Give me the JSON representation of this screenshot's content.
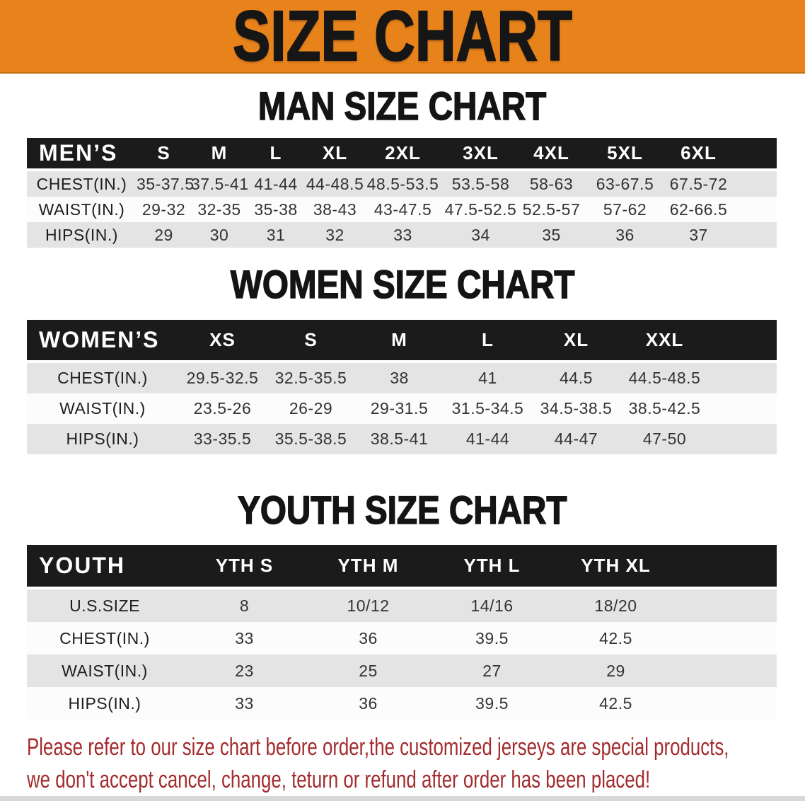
{
  "banner": {
    "title": "SIZE CHART"
  },
  "sections": [
    {
      "id": "men",
      "heading": "MAN SIZE CHART",
      "table": {
        "label": "MEN’S",
        "columns": [
          "S",
          "M",
          "L",
          "XL",
          "2XL",
          "3XL",
          "4XL",
          "5XL",
          "6XL"
        ],
        "rows": [
          {
            "label": "CHEST(IN.)",
            "values": [
              "35-37.5",
              "37.5-41",
              "41-44",
              "44-48.5",
              "48.5-53.5",
              "53.5-58",
              "58-63",
              "63-67.5",
              "67.5-72"
            ]
          },
          {
            "label": "WAIST(IN.)",
            "values": [
              "29-32",
              "32-35",
              "35-38",
              "38-43",
              "43-47.5",
              "47.5-52.5",
              "52.5-57",
              "57-62",
              "62-66.5"
            ]
          },
          {
            "label": "HIPS(IN.)",
            "values": [
              "29",
              "30",
              "31",
              "32",
              "33",
              "34",
              "35",
              "36",
              "37"
            ]
          }
        ]
      }
    },
    {
      "id": "women",
      "heading": "WOMEN SIZE CHART",
      "table": {
        "label": "WOMEN’S",
        "columns": [
          "XS",
          "S",
          "M",
          "L",
          "XL",
          "XXL"
        ],
        "rows": [
          {
            "label": "CHEST(IN.)",
            "values": [
              "29.5-32.5",
              "32.5-35.5",
              "38",
              "41",
              "44.5",
              "44.5-48.5"
            ]
          },
          {
            "label": "WAIST(IN.)",
            "values": [
              "23.5-26",
              "26-29",
              "29-31.5",
              "31.5-34.5",
              "34.5-38.5",
              "38.5-42.5"
            ]
          },
          {
            "label": "HIPS(IN.)",
            "values": [
              "33-35.5",
              "35.5-38.5",
              "38.5-41",
              "41-44",
              "44-47",
              "47-50"
            ]
          }
        ]
      }
    },
    {
      "id": "youth",
      "heading": "YOUTH SIZE CHART",
      "table": {
        "label": "YOUTH",
        "columns": [
          "YTH S",
          "YTH M",
          "YTH L",
          "YTH XL"
        ],
        "rows": [
          {
            "label": "U.S.SIZE",
            "values": [
              "8",
              "10/12",
              "14/16",
              "18/20"
            ]
          },
          {
            "label": "CHEST(IN.)",
            "values": [
              "33",
              "36",
              "39.5",
              "42.5"
            ]
          },
          {
            "label": "WAIST(IN.)",
            "values": [
              "23",
              "25",
              "27",
              "29"
            ]
          },
          {
            "label": "HIPS(IN.)",
            "values": [
              "33",
              "36",
              "39.5",
              "42.5"
            ]
          }
        ]
      }
    }
  ],
  "disclaimer": {
    "line1": "Please refer to our size chart before order,the customized jerseys are special products,",
    "line2": "we don't accept cancel, change, teturn or refund after order has been placed!"
  },
  "colors": {
    "banner_orange": "#E8831C",
    "banner_edge": "#C56F12",
    "bar_black": "#1B1B1B",
    "row_gray": "#E4E4E4",
    "row_white": "#FCFCFC",
    "text_dark": "#333333",
    "disclaimer_red": "#A32B2E",
    "bottom_strip_gray": "#D8D8D8"
  }
}
